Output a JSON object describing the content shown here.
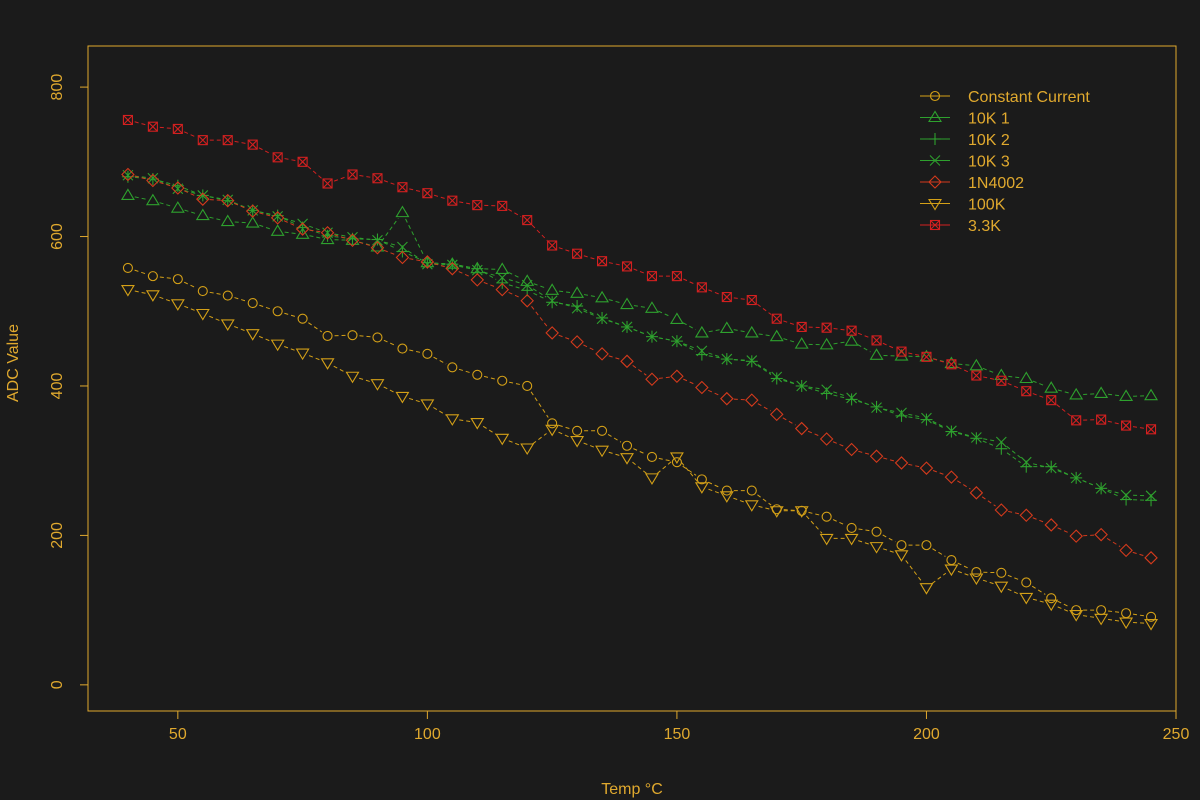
{
  "chart_data": {
    "type": "line",
    "title": "",
    "xlabel": "Temp °C",
    "ylabel": "ADC Value",
    "xlim": [
      32,
      250
    ],
    "ylim": [
      -35,
      855
    ],
    "x_ticks": [
      50,
      100,
      150,
      200,
      250
    ],
    "y_ticks": [
      0,
      200,
      400,
      600,
      800
    ],
    "grid": false,
    "legend_position": "top-right",
    "colors": {
      "background": "#1b1b1b",
      "axis": "#e0a92e",
      "text": "#e0a92e"
    },
    "x": [
      40,
      45,
      50,
      55,
      60,
      65,
      70,
      75,
      80,
      85,
      90,
      95,
      100,
      105,
      110,
      115,
      120,
      125,
      130,
      135,
      140,
      145,
      150,
      155,
      160,
      165,
      170,
      175,
      180,
      185,
      190,
      195,
      200,
      205,
      210,
      215,
      220,
      225,
      230,
      235,
      240,
      245
    ],
    "series": [
      {
        "name": "Constant Current",
        "color": "#d4a017",
        "marker": "circle",
        "values": [
          558,
          547,
          543,
          527,
          521,
          511,
          500,
          490,
          467,
          468,
          465,
          450,
          443,
          425,
          415,
          407,
          400,
          350,
          340,
          340,
          320,
          305,
          298,
          275,
          260,
          260,
          235,
          233,
          225,
          210,
          205,
          187,
          187,
          167,
          151,
          150,
          137,
          116,
          100,
          100,
          96,
          91
        ]
      },
      {
        "name": "10K 1",
        "color": "#2ea12e",
        "marker": "triangle-up",
        "values": [
          655,
          648,
          638,
          628,
          620,
          618,
          607,
          603,
          596,
          595,
          586,
          632,
          565,
          563,
          557,
          556,
          540,
          528,
          524,
          518,
          509,
          504,
          489,
          471,
          477,
          471,
          466,
          456,
          455,
          460,
          441,
          440,
          439,
          430,
          427,
          414,
          410,
          397,
          388,
          390,
          386,
          387
        ]
      },
      {
        "name": "10K 2",
        "color": "#2ea12e",
        "marker": "plus",
        "values": [
          680,
          677,
          668,
          655,
          648,
          635,
          628,
          612,
          601,
          597,
          596,
          580,
          565,
          563,
          557,
          538,
          528,
          512,
          507,
          491,
          479,
          466,
          460,
          442,
          436,
          433,
          410,
          400,
          390,
          382,
          372,
          360,
          355,
          339,
          330,
          316,
          292,
          292,
          277,
          263,
          248,
          247
        ]
      },
      {
        "name": "10K 3",
        "color": "#2ea12e",
        "marker": "x",
        "values": [
          682,
          678,
          664,
          655,
          649,
          635,
          627,
          617,
          605,
          599,
          595,
          586,
          563,
          562,
          555,
          545,
          535,
          514,
          504,
          490,
          479,
          466,
          460,
          447,
          436,
          434,
          412,
          400,
          395,
          384,
          371,
          364,
          357,
          340,
          331,
          325,
          298,
          290,
          277,
          263,
          254,
          253
        ]
      },
      {
        "name": "1N4002",
        "color": "#d43a1c",
        "marker": "diamond",
        "values": [
          683,
          675,
          665,
          650,
          648,
          634,
          625,
          610,
          605,
          595,
          585,
          572,
          566,
          557,
          542,
          529,
          514,
          471,
          459,
          443,
          433,
          409,
          413,
          398,
          383,
          381,
          362,
          343,
          329,
          315,
          306,
          297,
          290,
          278,
          257,
          234,
          227,
          214,
          199,
          201,
          180,
          170
        ]
      },
      {
        "name": "100K",
        "color": "#d4a017",
        "marker": "triangle-down",
        "values": [
          529,
          522,
          510,
          497,
          483,
          470,
          456,
          444,
          431,
          413,
          403,
          386,
          376,
          356,
          351,
          330,
          317,
          342,
          327,
          314,
          304,
          277,
          305,
          265,
          253,
          241,
          233,
          233,
          196,
          196,
          185,
          174,
          130,
          155,
          143,
          132,
          117,
          108,
          94,
          89,
          84,
          82
        ]
      },
      {
        "name": "3.3K",
        "color": "#d42020",
        "marker": "square-x",
        "values": [
          756,
          747,
          744,
          729,
          729,
          723,
          706,
          700,
          671,
          683,
          678,
          666,
          658,
          648,
          642,
          641,
          622,
          588,
          577,
          567,
          560,
          547,
          547,
          532,
          519,
          515,
          490,
          479,
          478,
          474,
          461,
          446,
          439,
          429,
          414,
          407,
          393,
          381,
          354,
          355,
          347,
          342
        ]
      }
    ]
  }
}
